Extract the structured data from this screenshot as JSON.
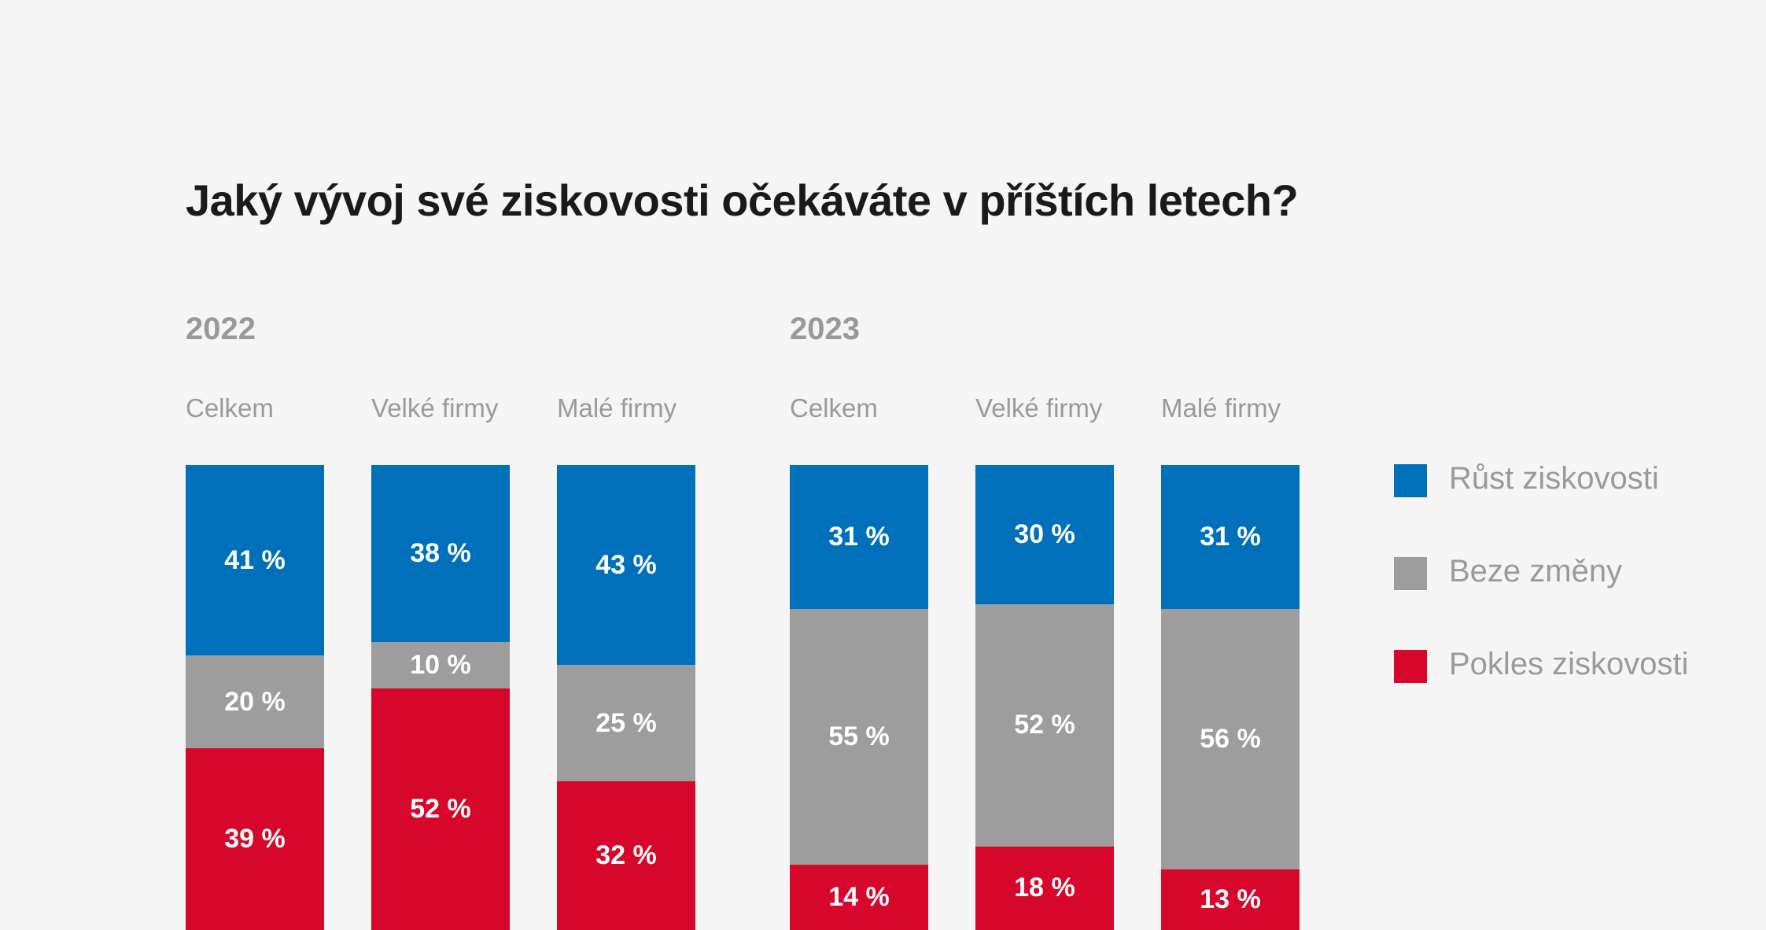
{
  "chart_data": {
    "type": "bar",
    "stacked": true,
    "orientation": "vertical",
    "title": "Jaký vývoj své ziskovosti očekáváte v příštích letech?",
    "colors": {
      "growth": "#0070bb",
      "nochange": "#9d9d9d",
      "decline": "#d6072b"
    },
    "legend": [
      {
        "key": "growth",
        "label": "Růst ziskovosti"
      },
      {
        "key": "nochange",
        "label": "Beze změny"
      },
      {
        "key": "decline",
        "label": "Pokles ziskovosti"
      }
    ],
    "groups": [
      {
        "year": "2022",
        "bars": [
          {
            "category": "Celkem",
            "growth": 41,
            "nochange": 20,
            "decline": 39,
            "labels": [
              "41 %",
              "20 %",
              "39 %"
            ]
          },
          {
            "category": "Velké firmy",
            "growth": 38,
            "nochange": 10,
            "decline": 52,
            "labels": [
              "38 %",
              "10 %",
              "52 %"
            ]
          },
          {
            "category": "Malé firmy",
            "growth": 43,
            "nochange": 25,
            "decline": 32,
            "labels": [
              "43 %",
              "25 %",
              "32 %"
            ]
          }
        ]
      },
      {
        "year": "2023",
        "bars": [
          {
            "category": "Celkem",
            "growth": 31,
            "nochange": 55,
            "decline": 14,
            "labels": [
              "31 %",
              "55 %",
              "14 %"
            ]
          },
          {
            "category": "Velké firmy",
            "growth": 30,
            "nochange": 52,
            "decline": 18,
            "labels": [
              "30 %",
              "52 %",
              "18 %"
            ]
          },
          {
            "category": "Malé firmy",
            "growth": 31,
            "nochange": 56,
            "decline": 13,
            "labels": [
              "31 %",
              "56 %",
              "13 %"
            ]
          }
        ]
      }
    ]
  }
}
